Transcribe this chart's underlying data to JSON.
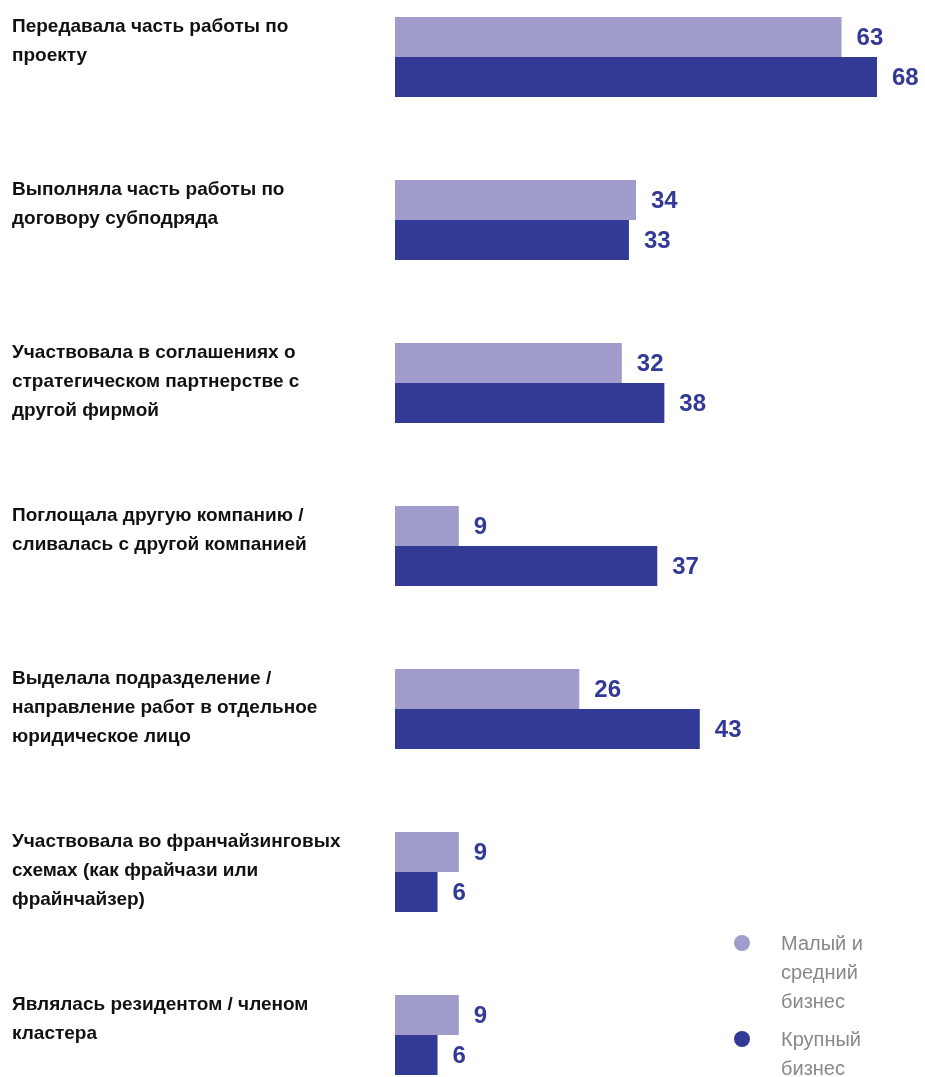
{
  "chart_data": {
    "type": "bar",
    "orientation": "horizontal",
    "data_labels": true,
    "legend": "bottom right",
    "categories": [
      "Передавала часть работы по проекту",
      "Выполняла часть работы по договору субподряда",
      "Участвовала в соглашениях о стратегическом партнерстве с другой фирмой",
      "Поглощала другую компанию / сливалась с другой компанией",
      "Выделала подразделение / направление работ в отдельное юридическое лицо",
      "Участвовала во франчайзинговых схемах (как фрайчази или фрайнчайзер)",
      "Являлась резидентом / членом кластера"
    ],
    "series": [
      {
        "name": "Малый и средний бизнес",
        "color": "#a09ccc",
        "values": [
          63,
          34,
          32,
          9,
          26,
          9,
          9
        ]
      },
      {
        "name": "Крупный бизнес",
        "color": "#333a96",
        "values": [
          68,
          33,
          38,
          37,
          43,
          6,
          6
        ]
      }
    ]
  }
}
